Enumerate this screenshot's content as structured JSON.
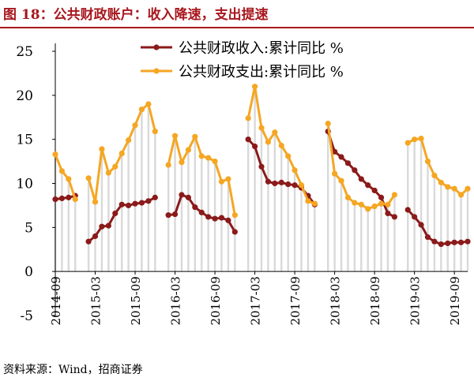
{
  "figure": {
    "title": "图 18：公共财政账户：收入降速，支出提速",
    "source": "资料来源：Wind，招商证券"
  },
  "colors": {
    "title": "#a8171e",
    "revenue": "#8b1a1a",
    "expenditure": "#f5a623",
    "bars": "#d9d9d9"
  },
  "chart_data": {
    "type": "line",
    "ylim": [
      -5,
      25
    ],
    "yticks": [
      -5,
      0,
      5,
      10,
      15,
      20,
      25
    ],
    "x_start": "2014-09",
    "x_end": "2019-11",
    "xticks": [
      "2014-09",
      "2015-03",
      "2015-09",
      "2016-03",
      "2016-09",
      "2017-03",
      "2017-09",
      "2018-03",
      "2018-09",
      "2019-03",
      "2019-09"
    ],
    "grid": false,
    "legend": "top",
    "series": [
      {
        "name": "公共财政收入:累计同比 %",
        "color_key": "revenue",
        "segments": [
          {
            "x": [
              "2014-09",
              "2014-10",
              "2014-11",
              "2014-12"
            ],
            "y": [
              8.2,
              8.3,
              8.4,
              8.6
            ]
          },
          {
            "x": [
              "2015-02",
              "2015-03",
              "2015-04",
              "2015-05",
              "2015-06",
              "2015-07",
              "2015-08",
              "2015-09",
              "2015-10",
              "2015-11",
              "2015-12"
            ],
            "y": [
              3.4,
              4.0,
              5.1,
              5.2,
              6.6,
              7.6,
              7.5,
              7.7,
              7.8,
              8.0,
              8.4
            ]
          },
          {
            "x": [
              "2016-02",
              "2016-03",
              "2016-04",
              "2016-05",
              "2016-06",
              "2016-07",
              "2016-08",
              "2016-09",
              "2016-10",
              "2016-11",
              "2016-12"
            ],
            "y": [
              6.4,
              6.5,
              8.7,
              8.4,
              7.3,
              6.7,
              6.2,
              6.0,
              6.1,
              5.8,
              4.5
            ]
          },
          {
            "x": [
              "2017-02",
              "2017-03",
              "2017-04",
              "2017-05",
              "2017-06",
              "2017-07",
              "2017-08",
              "2017-09",
              "2017-10",
              "2017-11",
              "2017-12"
            ],
            "y": [
              15.0,
              14.2,
              11.9,
              10.2,
              10.0,
              10.1,
              9.9,
              9.8,
              9.5,
              8.6,
              7.6
            ]
          },
          {
            "x": [
              "2018-02",
              "2018-03",
              "2018-04",
              "2018-05",
              "2018-06",
              "2018-07",
              "2018-08",
              "2018-09",
              "2018-10",
              "2018-11",
              "2018-12"
            ],
            "y": [
              15.9,
              13.6,
              13.0,
              12.3,
              11.5,
              10.5,
              9.8,
              9.2,
              8.4,
              6.6,
              6.2
            ]
          },
          {
            "x": [
              "2019-02",
              "2019-03",
              "2019-04",
              "2019-05",
              "2019-06",
              "2019-07",
              "2019-08",
              "2019-09",
              "2019-10",
              "2019-11"
            ],
            "y": [
              7.0,
              6.2,
              5.3,
              3.9,
              3.4,
              3.1,
              3.2,
              3.3,
              3.3,
              3.4
            ]
          }
        ]
      },
      {
        "name": "公共财政支出:累计同比 %",
        "color_key": "expenditure",
        "segments": [
          {
            "x": [
              "2014-09",
              "2014-10",
              "2014-11",
              "2014-12"
            ],
            "y": [
              13.3,
              11.4,
              10.5,
              8.2
            ]
          },
          {
            "x": [
              "2015-02",
              "2015-03",
              "2015-04",
              "2015-05",
              "2015-06",
              "2015-07",
              "2015-08",
              "2015-09",
              "2015-10",
              "2015-11",
              "2015-12"
            ],
            "y": [
              10.6,
              7.9,
              13.9,
              11.2,
              11.9,
              13.4,
              14.9,
              16.6,
              18.4,
              19.0,
              15.9
            ]
          },
          {
            "x": [
              "2016-02",
              "2016-03",
              "2016-04",
              "2016-05",
              "2016-06",
              "2016-07",
              "2016-08",
              "2016-09",
              "2016-10",
              "2016-11",
              "2016-12"
            ],
            "y": [
              12.1,
              15.4,
              12.4,
              13.8,
              15.3,
              13.1,
              12.9,
              12.5,
              10.2,
              10.5,
              6.4
            ]
          },
          {
            "x": [
              "2017-02",
              "2017-03",
              "2017-04",
              "2017-05",
              "2017-06",
              "2017-07",
              "2017-08",
              "2017-09",
              "2017-10",
              "2017-11",
              "2017-12"
            ],
            "y": [
              17.4,
              21.0,
              16.3,
              14.7,
              15.8,
              14.3,
              13.1,
              11.5,
              9.8,
              8.0,
              7.7
            ]
          },
          {
            "x": [
              "2018-02",
              "2018-03",
              "2018-04",
              "2018-05",
              "2018-06",
              "2018-07",
              "2018-08",
              "2018-09",
              "2018-10",
              "2018-11",
              "2018-12"
            ],
            "y": [
              16.8,
              11.1,
              10.3,
              8.4,
              7.8,
              7.6,
              7.1,
              7.4,
              7.7,
              7.6,
              8.7
            ]
          },
          {
            "x": [
              "2019-02",
              "2019-03",
              "2019-04",
              "2019-05",
              "2019-06",
              "2019-07",
              "2019-08",
              "2019-09",
              "2019-10",
              "2019-11"
            ],
            "y": [
              14.6,
              15.0,
              15.1,
              12.5,
              10.9,
              10.1,
              9.6,
              9.4,
              8.7,
              9.4
            ]
          }
        ]
      }
    ],
    "bars": {
      "description_key": "expenditure",
      "x": [
        "2014-09",
        "2014-10",
        "2014-11",
        "2014-12",
        "2015-02",
        "2015-03",
        "2015-04",
        "2015-05",
        "2015-06",
        "2015-07",
        "2015-08",
        "2015-09",
        "2015-10",
        "2015-11",
        "2015-12",
        "2016-02",
        "2016-03",
        "2016-04",
        "2016-05",
        "2016-06",
        "2016-07",
        "2016-08",
        "2016-09",
        "2016-10",
        "2016-11",
        "2016-12",
        "2017-02",
        "2017-03",
        "2017-04",
        "2017-05",
        "2017-06",
        "2017-07",
        "2017-08",
        "2017-09",
        "2017-10",
        "2017-11",
        "2017-12",
        "2018-02",
        "2018-03",
        "2018-04",
        "2018-05",
        "2018-06",
        "2018-07",
        "2018-08",
        "2018-09",
        "2018-10",
        "2018-11",
        "2018-12",
        "2019-02",
        "2019-03",
        "2019-04",
        "2019-05",
        "2019-06",
        "2019-07",
        "2019-08",
        "2019-09",
        "2019-10",
        "2019-11"
      ],
      "y": [
        13.3,
        11.4,
        10.5,
        8.2,
        10.6,
        7.9,
        13.9,
        11.2,
        11.9,
        13.4,
        14.9,
        16.6,
        18.4,
        19.0,
        15.9,
        12.1,
        15.4,
        12.4,
        13.8,
        15.3,
        13.1,
        12.9,
        12.5,
        10.2,
        10.5,
        6.4,
        17.4,
        21.0,
        16.3,
        14.7,
        15.8,
        14.3,
        13.1,
        11.5,
        9.8,
        8.0,
        7.7,
        16.8,
        11.1,
        10.3,
        8.4,
        7.8,
        7.6,
        7.1,
        7.4,
        7.7,
        7.6,
        8.7,
        14.6,
        15.0,
        15.1,
        12.5,
        10.9,
        10.1,
        9.6,
        9.4,
        8.7,
        9.4
      ]
    }
  }
}
